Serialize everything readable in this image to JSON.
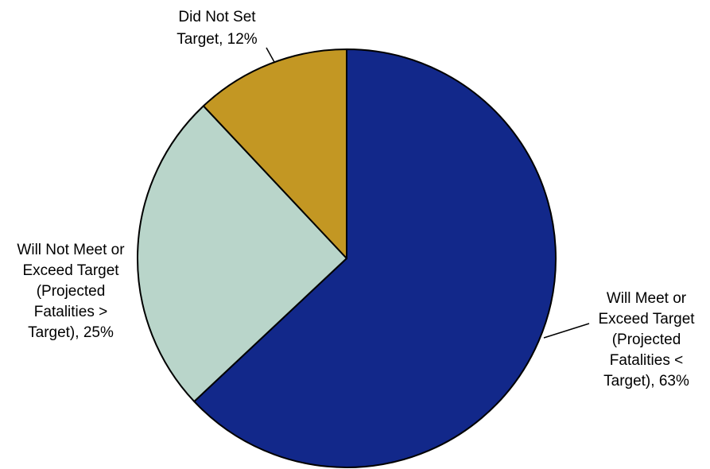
{
  "chart_data": {
    "type": "pie",
    "title": "",
    "start_angle_deg": 0,
    "direction": "clockwise",
    "slices": [
      {
        "label_lines": [
          "Will Meet or",
          "Exceed Target",
          "(Projected",
          "Fatalities <",
          "Target), 63%"
        ],
        "value": 63,
        "color": "#12288a"
      },
      {
        "label_lines": [
          "Will Not Meet or",
          "Exceed Target",
          "(Projected",
          "Fatalities >",
          "Target), 25%"
        ],
        "value": 25,
        "color": "#b9d5ca"
      },
      {
        "label_lines": [
          "Did Not Set",
          "Target, 12%"
        ],
        "value": 12,
        "color": "#c39723"
      }
    ],
    "legend": "none"
  }
}
